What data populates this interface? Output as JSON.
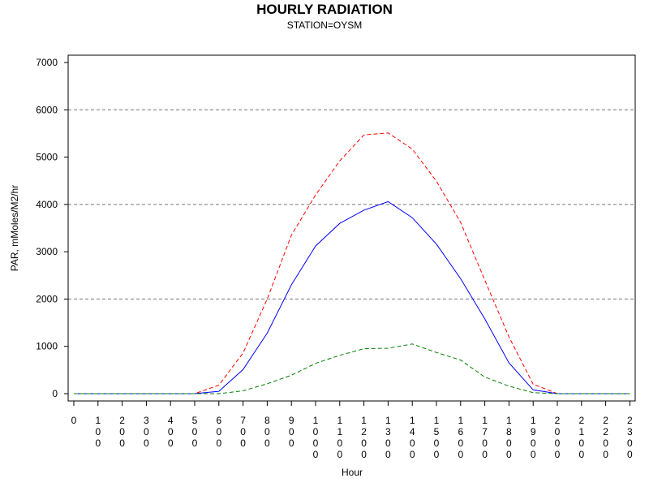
{
  "chart_data": {
    "type": "line",
    "title": "HOURLY RADIATION",
    "subtitle": "STATION=OYSM",
    "xlabel": "Hour",
    "ylabel": "PAR, mMoles/M2/hr",
    "ylim": [
      0,
      7000
    ],
    "yticks": [
      0,
      1000,
      2000,
      3000,
      4000,
      5000,
      6000,
      7000
    ],
    "xticks": [
      "0",
      "100",
      "200",
      "300",
      "400",
      "500",
      "600",
      "700",
      "800",
      "900",
      "1000",
      "1100",
      "1200",
      "1300",
      "1400",
      "1500",
      "1600",
      "1700",
      "1800",
      "1900",
      "2000",
      "2100",
      "2200",
      "2300"
    ],
    "gridlines": [
      2000,
      4000,
      6000
    ],
    "grid": "horizontal dashed at 2000, 4000, 6000",
    "x": [
      0,
      100,
      200,
      300,
      400,
      500,
      600,
      700,
      800,
      900,
      1000,
      1100,
      1200,
      1300,
      1400,
      1500,
      1600,
      1700,
      1800,
      1900,
      2000,
      2100,
      2200,
      2300
    ],
    "series": [
      {
        "color": "#ff0000",
        "style": "dashed",
        "values": [
          0,
          0,
          0,
          0,
          0,
          0,
          180,
          860,
          2000,
          3350,
          4200,
          4920,
          5470,
          5510,
          5170,
          4490,
          3620,
          2400,
          1200,
          200,
          0,
          0,
          0,
          0
        ]
      },
      {
        "color": "#0000ff",
        "style": "solid",
        "values": [
          0,
          0,
          0,
          0,
          0,
          0,
          50,
          510,
          1280,
          2300,
          3120,
          3600,
          3880,
          4060,
          3720,
          3160,
          2430,
          1580,
          650,
          80,
          0,
          0,
          0,
          0
        ]
      },
      {
        "color": "#008000",
        "style": "dashed",
        "values": [
          0,
          0,
          0,
          0,
          0,
          0,
          0,
          60,
          210,
          390,
          640,
          810,
          950,
          960,
          1050,
          870,
          710,
          350,
          160,
          20,
          0,
          0,
          0,
          0
        ]
      }
    ]
  }
}
